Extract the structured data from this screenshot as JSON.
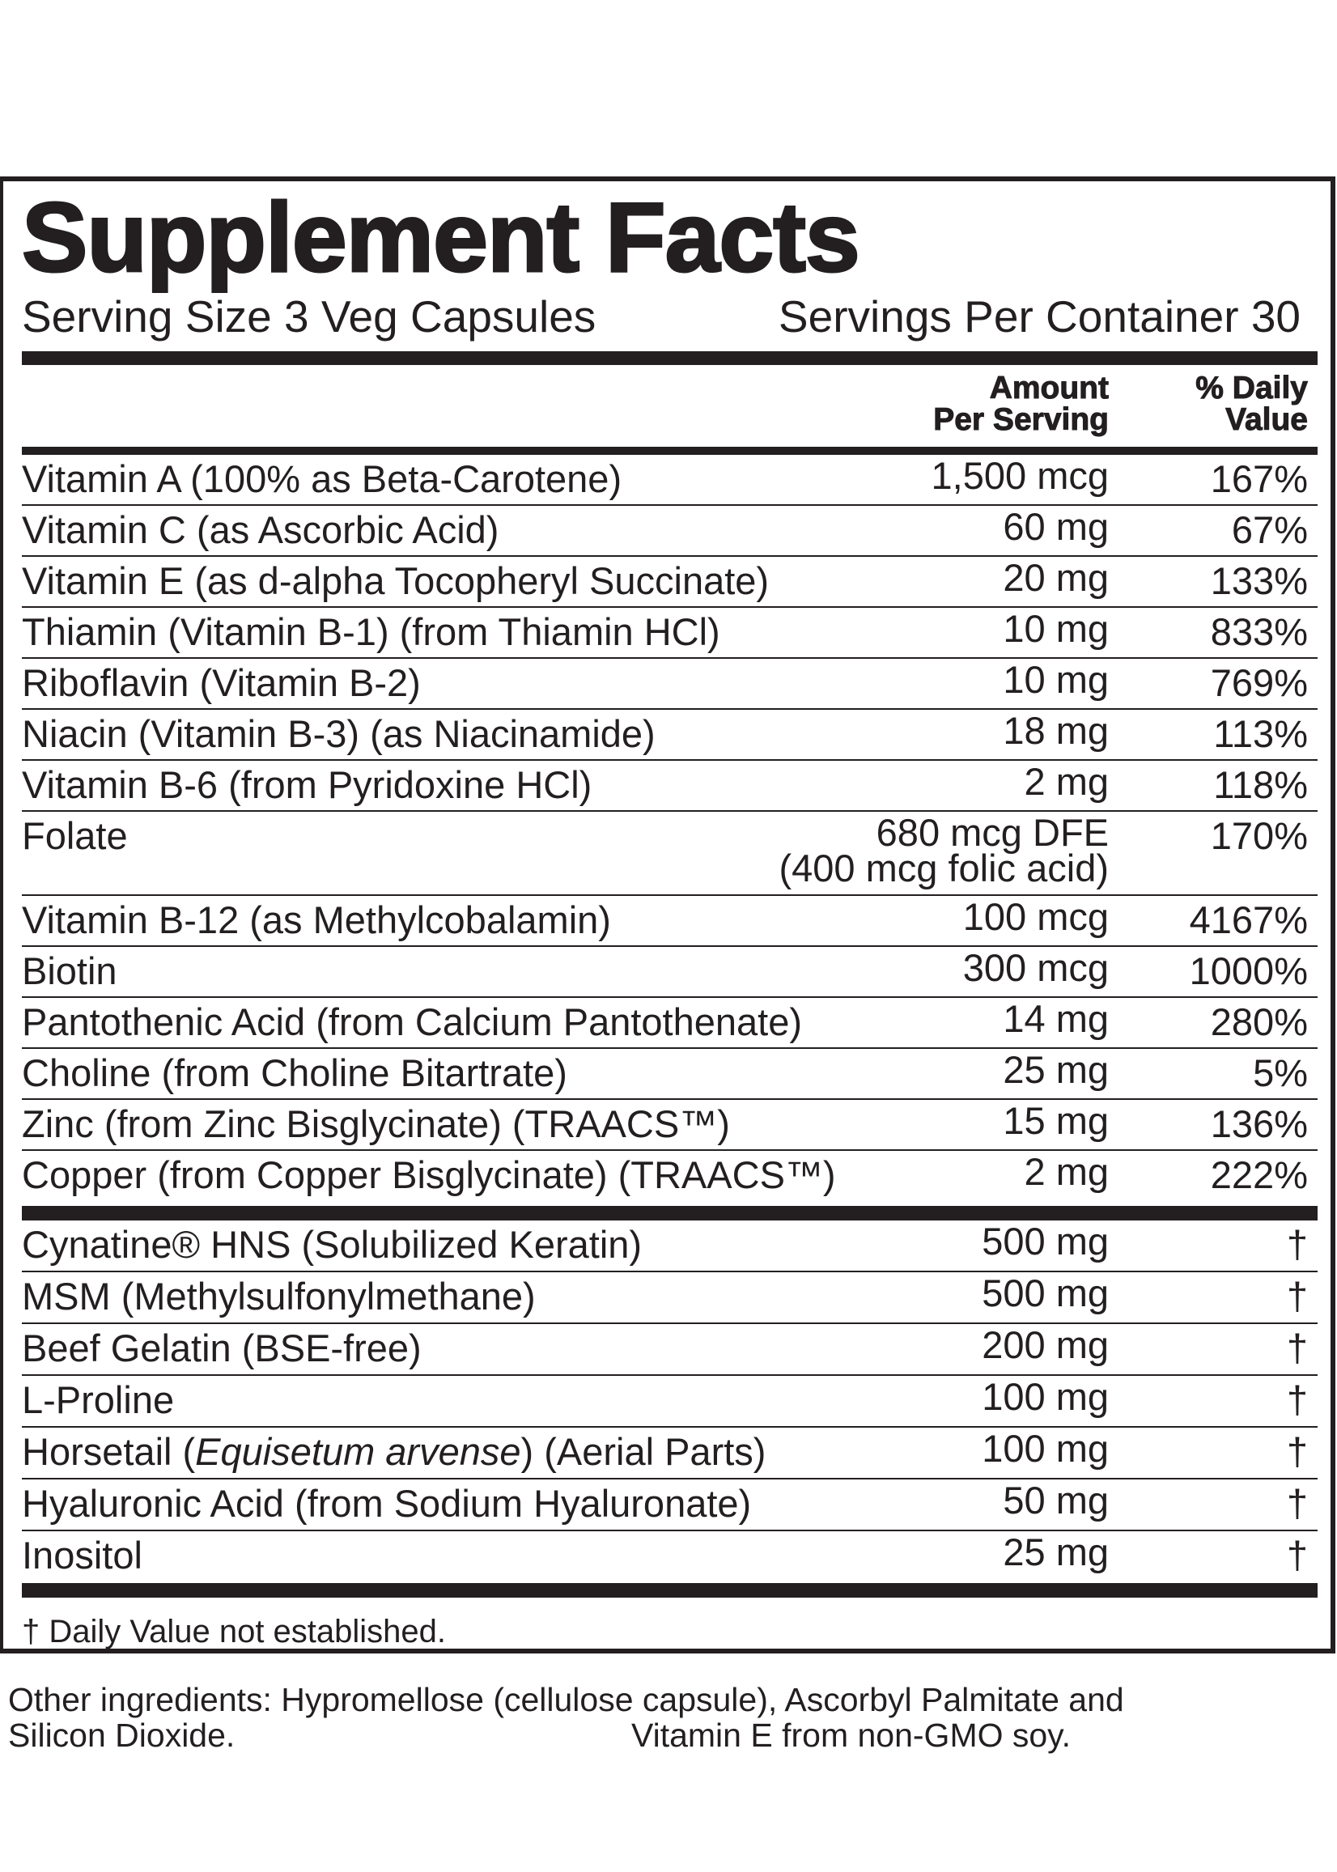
{
  "title": "Supplement Facts",
  "serving_size": "Serving Size 3 Veg Capsules",
  "servings_per_container": "Servings Per Container 30",
  "headers": {
    "amount_line1": "Amount",
    "amount_line2": "Per Serving",
    "dv_line1": "% Daily",
    "dv_line2": "Value"
  },
  "vitamins": [
    {
      "name": "Vitamin A (100% as Beta-Carotene)",
      "amount": "1,500 mcg",
      "dv": "167%"
    },
    {
      "name": "Vitamin C (as Ascorbic Acid)",
      "amount": "60 mg",
      "dv": "67%"
    },
    {
      "name": "Vitamin E (as d-alpha Tocopheryl Succinate)",
      "amount": "20 mg",
      "dv": "133%"
    },
    {
      "name": "Thiamin (Vitamin B-1) (from Thiamin HCl)",
      "amount": "10 mg",
      "dv": "833%"
    },
    {
      "name": "Riboflavin (Vitamin B-2)",
      "amount": "10 mg",
      "dv": "769%"
    },
    {
      "name": "Niacin (Vitamin B-3) (as Niacinamide)",
      "amount": "18 mg",
      "dv": "113%"
    },
    {
      "name": "Vitamin B-6 (from Pyridoxine HCl)",
      "amount": "2 mg",
      "dv": "118%"
    },
    {
      "name": "Folate",
      "amount": "680 mcg DFE",
      "amount_line2": "(400 mcg folic acid)",
      "dv": "170%"
    },
    {
      "name": "Vitamin B-12 (as Methylcobalamin)",
      "amount": "100 mcg",
      "dv": "4167%"
    },
    {
      "name": "Biotin",
      "amount": "300 mcg",
      "dv": "1000%"
    },
    {
      "name": "Pantothenic Acid (from Calcium Pantothenate)",
      "amount": "14 mg",
      "dv": "280%"
    },
    {
      "name": "Choline (from Choline Bitartrate)",
      "amount": "25 mg",
      "dv": "5%"
    },
    {
      "name": "Zinc (from Zinc Bisglycinate) (TRAACS™)",
      "amount": "15 mg",
      "dv": "136%"
    },
    {
      "name": "Copper (from Copper Bisglycinate) (TRAACS™)",
      "amount": "2 mg",
      "dv": "222%"
    }
  ],
  "others": [
    {
      "name": "Cynatine® HNS (Solubilized Keratin)",
      "amount": "500 mg",
      "dv": "†"
    },
    {
      "name": "MSM (Methylsulfonylmethane)",
      "amount": "500 mg",
      "dv": "†"
    },
    {
      "name": "Beef Gelatin (BSE-free)",
      "amount": "200 mg",
      "dv": "†"
    },
    {
      "name": "L-Proline",
      "amount": "100 mg",
      "dv": "†"
    },
    {
      "name_pre": "Horsetail (",
      "name_italic": "Equisetum arvense",
      "name_post": ") (Aerial Parts)",
      "amount": "100 mg",
      "dv": "†"
    },
    {
      "name": "Hyaluronic Acid (from Sodium Hyaluronate)",
      "amount": "50 mg",
      "dv": "†"
    },
    {
      "name": "Inositol",
      "amount": "25 mg",
      "dv": "†"
    }
  ],
  "footnote": "† Daily Value not established.",
  "other_ingredients": {
    "line1": "Other ingredients: Hypromellose (cellulose capsule), Ascorbyl Palmitate and",
    "line2a": "Silicon Dioxide.",
    "line2b": "Vitamin E from non-GMO soy."
  },
  "colors": {
    "ink": "#231f20",
    "background": "#ffffff"
  }
}
